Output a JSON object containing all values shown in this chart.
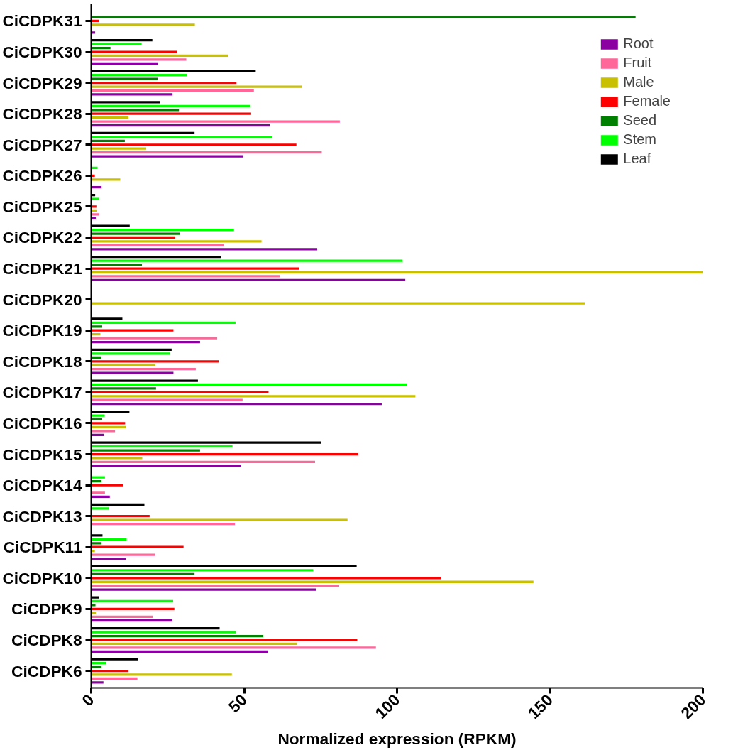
{
  "chart_data": {
    "type": "bar",
    "orientation": "horizontal",
    "xlabel": "Normalized expression (RPKM)",
    "categories": [
      "CiCDPK31",
      "CiCDPK30",
      "CiCDPK29",
      "CiCDPK28",
      "CiCDPK27",
      "CiCDPK26",
      "CiCDPK25",
      "CiCDPK22",
      "CiCDPK21",
      "CiCDPK20",
      "CiCDPK19",
      "CiCDPK18",
      "CiCDPK17",
      "CiCDPK16",
      "CiCDPK15",
      "CiCDPK14",
      "CiCDPK13",
      "CiCDPK11",
      "CiCDPK10",
      "CiCDPK9",
      "CiCDPK8",
      "CiCDPK6"
    ],
    "series": [
      {
        "name": "Root",
        "color": "#8b00a0",
        "values": [
          1.3,
          21.8,
          26.6,
          58.4,
          49.7,
          3.4,
          1.5,
          73.9,
          102.7,
          null,
          35.6,
          26.9,
          95,
          4.2,
          48.9,
          6.1,
          0,
          11.4,
          73.5,
          26.5,
          57.8,
          4
        ]
      },
      {
        "name": "Fruit",
        "color": "#ff6699",
        "values": [
          0,
          31.1,
          53.2,
          81.3,
          75.4,
          0,
          2.7,
          43.3,
          61.7,
          0,
          41.2,
          34.2,
          49.5,
          7.8,
          73.2,
          4.5,
          47,
          20.9,
          81.1,
          20.2,
          93.1,
          15.1
        ]
      },
      {
        "name": "Male",
        "color": "#c8c000",
        "values": [
          33.9,
          44.8,
          69,
          12.2,
          18,
          9.5,
          1.8,
          55.7,
          200,
          161.4,
          3,
          21,
          106,
          11.3,
          16.7,
          0,
          83.8,
          1.2,
          144.6,
          1.5,
          67.3,
          46
        ]
      },
      {
        "name": "Female",
        "color": "#ff0000",
        "values": [
          2.5,
          28.1,
          47.5,
          52.3,
          67.1,
          1.2,
          1.7,
          27.5,
          67.9,
          null,
          26.9,
          41.7,
          58,
          11.1,
          87.3,
          10.5,
          19.1,
          30.2,
          114.4,
          27.2,
          87,
          12.2
        ]
      },
      {
        "name": "Seed",
        "color": "#008000",
        "values": [
          178,
          6.3,
          21.7,
          28.7,
          11,
          0,
          0,
          29.1,
          16.6,
          0,
          3.6,
          3.3,
          21.2,
          3.6,
          35.6,
          3.4,
          null,
          3.4,
          33.8,
          1.4,
          56.3,
          3.4
        ]
      },
      {
        "name": "Stem",
        "color": "#00ff00",
        "values": [
          0,
          16.5,
          31.2,
          52,
          59.3,
          2.1,
          2.7,
          46.7,
          101.8,
          0,
          47.2,
          25.7,
          103.2,
          4.4,
          46.2,
          4.5,
          5.7,
          11.6,
          72.6,
          26.8,
          47.3,
          4.9
        ]
      },
      {
        "name": "Leaf",
        "color": "#000000",
        "values": [
          0,
          20,
          53.8,
          22.5,
          33.8,
          0,
          1.3,
          12.6,
          42.5,
          0,
          10.2,
          26.3,
          34.9,
          12.5,
          75.2,
          0,
          17.4,
          3.7,
          86.8,
          2.5,
          42,
          15.4
        ]
      }
    ],
    "xlim": [
      0,
      200
    ],
    "xticks": [
      0,
      50,
      100,
      150,
      200
    ],
    "grid": false,
    "legend": "top right"
  }
}
